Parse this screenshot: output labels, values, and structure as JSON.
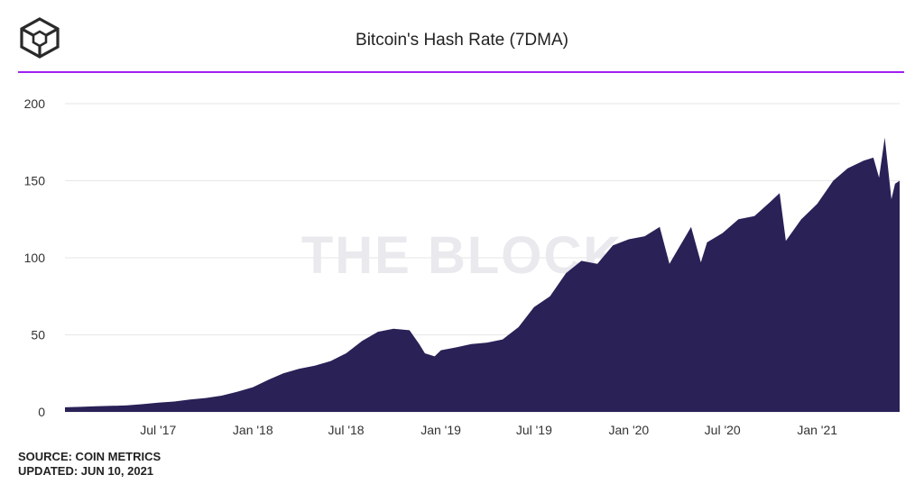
{
  "header": {
    "logo_icon": "the-block-cube-icon",
    "title": "Bitcoin's Hash Rate (7DMA)",
    "accent_color": "#a020f0"
  },
  "watermark": "THE BLOCK",
  "footer": {
    "source": "SOURCE: COIN METRICS",
    "updated": "UPDATED: JUN 10, 2021"
  },
  "chart_data": {
    "type": "area",
    "title": "Bitcoin's Hash Rate (7DMA)",
    "xlabel": "",
    "ylabel": "",
    "ylim": [
      0,
      200
    ],
    "y_ticks": [
      0,
      50,
      100,
      150,
      200
    ],
    "x_tick_labels": [
      "Jul '17",
      "Jan '18",
      "Jul '18",
      "Jan '19",
      "Jul '19",
      "Jan '20",
      "Jul '20",
      "Jan '21"
    ],
    "x_tick_dates": [
      "2017-07-01",
      "2018-01-01",
      "2018-07-01",
      "2019-01-01",
      "2019-07-01",
      "2020-01-01",
      "2020-07-01",
      "2021-01-01"
    ],
    "x_range": [
      "2017-01-01",
      "2021-06-10"
    ],
    "grid": true,
    "legend": "none",
    "fill_color": "#2a2157",
    "series": [
      {
        "x": [
          "2017-01-01",
          "2017-02-01",
          "2017-03-01",
          "2017-04-01",
          "2017-05-01",
          "2017-06-01",
          "2017-07-01",
          "2017-08-01",
          "2017-09-01",
          "2017-10-01",
          "2017-11-01",
          "2017-12-01",
          "2018-01-01",
          "2018-02-01",
          "2018-03-01",
          "2018-04-01",
          "2018-05-01",
          "2018-06-01",
          "2018-07-01",
          "2018-08-01",
          "2018-09-01",
          "2018-10-01",
          "2018-11-01",
          "2018-11-20",
          "2018-12-01",
          "2018-12-20",
          "2019-01-01",
          "2019-02-01",
          "2019-03-01",
          "2019-04-01",
          "2019-05-01",
          "2019-06-01",
          "2019-07-01",
          "2019-08-01",
          "2019-09-01",
          "2019-10-01",
          "2019-11-01",
          "2019-12-01",
          "2020-01-01",
          "2020-02-01",
          "2020-03-01",
          "2020-03-20",
          "2020-04-01",
          "2020-05-01",
          "2020-05-20",
          "2020-06-01",
          "2020-07-01",
          "2020-08-01",
          "2020-09-01",
          "2020-10-01",
          "2020-10-20",
          "2020-11-01",
          "2020-12-01",
          "2021-01-01",
          "2021-02-01",
          "2021-03-01",
          "2021-04-01",
          "2021-04-20",
          "2021-05-01",
          "2021-05-12",
          "2021-05-25",
          "2021-06-01",
          "2021-06-10"
        ],
        "y": [
          3,
          3.3,
          3.6,
          3.9,
          4.2,
          5,
          6,
          6.7,
          8,
          9,
          10.5,
          13,
          16,
          21,
          25,
          28,
          30,
          33,
          38,
          46,
          52,
          54,
          53,
          44,
          38,
          36,
          40,
          42,
          44,
          45,
          47,
          55,
          68,
          75,
          90,
          98,
          96,
          108,
          112,
          114,
          120,
          96,
          103,
          120,
          97,
          110,
          116,
          125,
          127,
          136,
          142,
          111,
          125,
          135,
          150,
          158,
          163,
          165,
          152,
          178,
          138,
          148,
          150
        ]
      }
    ]
  }
}
